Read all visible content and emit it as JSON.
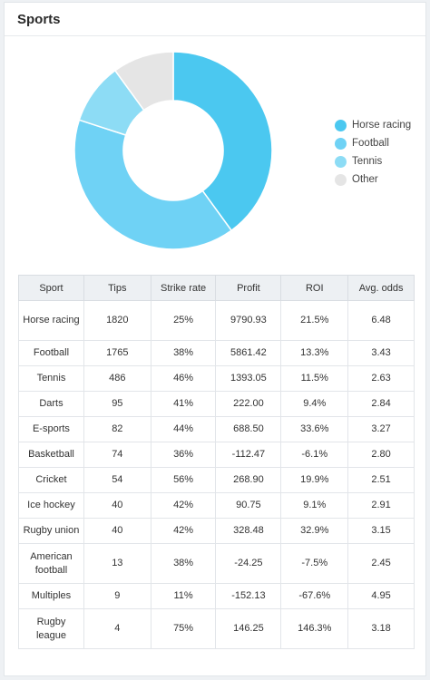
{
  "card": {
    "title": "Sports"
  },
  "chart_data": {
    "type": "pie",
    "categories": [
      "Horse racing",
      "Football",
      "Tennis",
      "Other"
    ],
    "values": [
      40,
      40,
      10,
      10
    ],
    "colors": [
      "#4bc8f0",
      "#6fd2f5",
      "#8ddcf5",
      "#e5e5e5"
    ],
    "legend_position": "right"
  },
  "table": {
    "headers": [
      "Sport",
      "Tips",
      "Strike rate",
      "Profit",
      "ROI",
      "Avg. odds"
    ],
    "rows": [
      [
        "Horse racing",
        "1820",
        "25%",
        "9790.93",
        "21.5%",
        "6.48"
      ],
      [
        "Football",
        "1765",
        "38%",
        "5861.42",
        "13.3%",
        "3.43"
      ],
      [
        "Tennis",
        "486",
        "46%",
        "1393.05",
        "11.5%",
        "2.63"
      ],
      [
        "Darts",
        "95",
        "41%",
        "222.00",
        "9.4%",
        "2.84"
      ],
      [
        "E-sports",
        "82",
        "44%",
        "688.50",
        "33.6%",
        "3.27"
      ],
      [
        "Basketball",
        "74",
        "36%",
        "-112.47",
        "-6.1%",
        "2.80"
      ],
      [
        "Cricket",
        "54",
        "56%",
        "268.90",
        "19.9%",
        "2.51"
      ],
      [
        "Ice hockey",
        "40",
        "42%",
        "90.75",
        "9.1%",
        "2.91"
      ],
      [
        "Rugby union",
        "40",
        "42%",
        "328.48",
        "32.9%",
        "3.15"
      ],
      [
        "American football",
        "13",
        "38%",
        "-24.25",
        "-7.5%",
        "2.45"
      ],
      [
        "Multiples",
        "9",
        "11%",
        "-152.13",
        "-67.6%",
        "4.95"
      ],
      [
        "Rugby league",
        "4",
        "75%",
        "146.25",
        "146.3%",
        "3.18"
      ]
    ]
  }
}
